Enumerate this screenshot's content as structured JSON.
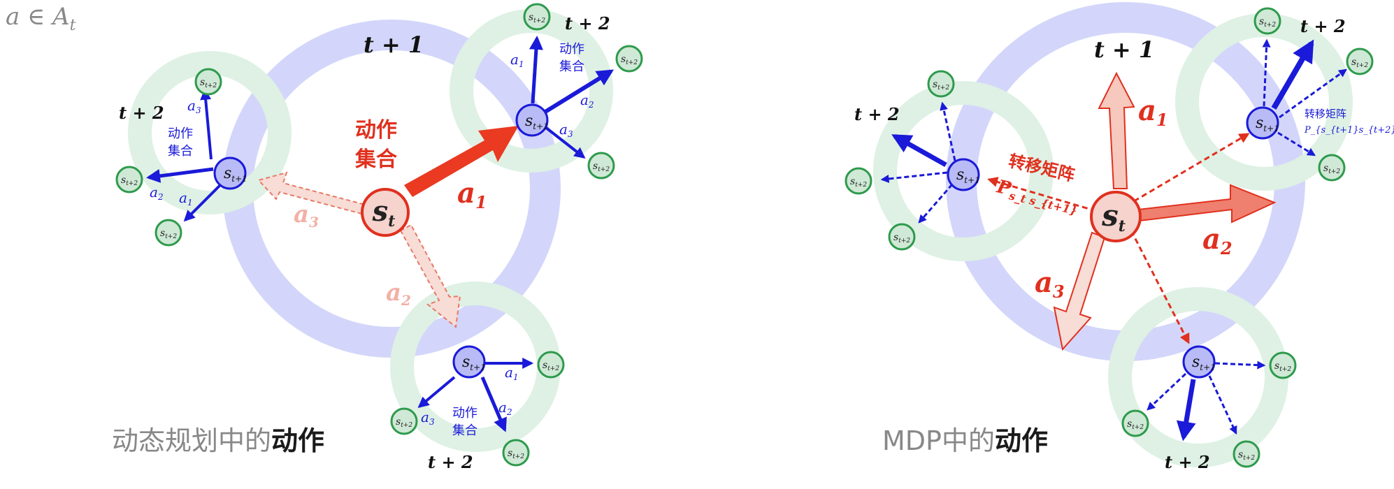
{
  "formula": "a ∈ A_t",
  "formula_parts": {
    "a": "a",
    "in": "∈",
    "A": "A",
    "sub": "t"
  },
  "left_panel": {
    "caption_gray": "动态规划中的",
    "caption_bold": "动作",
    "time_t1": "t + 1",
    "time_t2": "t + 2",
    "action_set_label_line1": "动作",
    "action_set_label_line2": "集合",
    "actions": {
      "a1": "a",
      "a1_sub": "1",
      "a2": "a",
      "a2_sub": "2",
      "a3": "a",
      "a3_sub": "3"
    },
    "nodes": {
      "s": "s",
      "sub_t": "t",
      "sub_t1": "t+1",
      "sub_t2": "t+2"
    }
  },
  "right_panel": {
    "caption_gray": "MDP中的",
    "caption_bold": "动作",
    "time_t1": "t + 1",
    "time_t2": "t + 2",
    "transition_label": "转移矩阵",
    "transition_matrix_symbol": "P",
    "transition_matrix_sub": "s_t s_{t+1}",
    "transition_matrix_small": "P_{s_{t+1}s_{t+2}}",
    "actions": {
      "a1": "a",
      "a1_sub": "1",
      "a2": "a",
      "a2_sub": "2",
      "a3": "a",
      "a3_sub": "3"
    }
  },
  "colors": {
    "red": "#e0301e",
    "blue": "#1a1ad8",
    "green": "#2e9a4c",
    "green_ring": "#dff0e5",
    "blue_ring": "#d6d8f8",
    "node_fill": "#b8bbf5",
    "green_fill": "#cfe9d6"
  }
}
